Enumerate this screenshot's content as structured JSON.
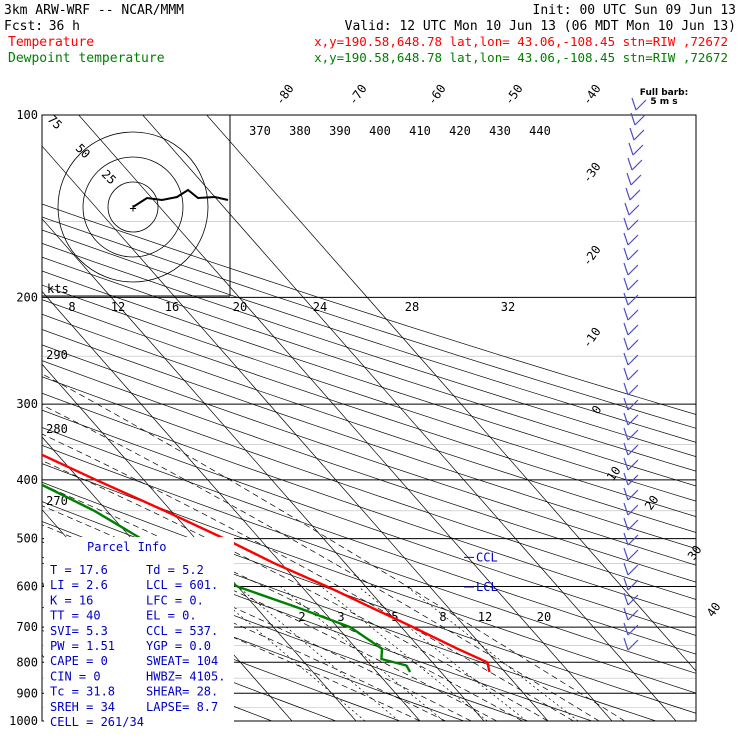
{
  "header": {
    "model": "3km ARW-WRF -- NCAR/MMM",
    "init": "Init: 00 UTC Sun 09 Jun 13",
    "fcst_label": "Fcst:",
    "fcst_value": "36 h",
    "valid": "Valid: 12 UTC Mon 10 Jun 13 (06 MDT Mon 10 Jun 13)",
    "temp_label": "Temperature",
    "temp_loc": "x,y=190.58,648.78   lat,lon= 43.06,-108.45   stn=RIW ,72672",
    "dew_label": "Dewpoint temperature",
    "dew_loc": "x,y=190.58,648.78   lat,lon= 43.06,-108.45   stn=RIW ,72672",
    "temp_color": "#ff0000",
    "dew_color": "#008000"
  },
  "hodograph": {
    "ring_labels": [
      "75",
      "50",
      "25"
    ],
    "units": "kts"
  },
  "barb_legend": {
    "line1": "Full barb:",
    "line2": "5 m s"
  },
  "parcel_info": {
    "title": "Parcel Info",
    "rows": [
      {
        "left": "T  =   17.6",
        "right": "Td =   5.2"
      },
      {
        "left": "LI =    2.6",
        "right": "LCL =  601."
      },
      {
        "left": "K  =     16",
        "right": "LFC =    0."
      },
      {
        "left": "TT =     40",
        "right": "EL =     0."
      },
      {
        "left": "SVI=    5.3",
        "right": "CCL =  537."
      },
      {
        "left": "PW =   1.51",
        "right": "YGP =   0.0"
      },
      {
        "left": "CAPE =    0",
        "right": "SWEAT=  104"
      },
      {
        "left": "CIN =     0",
        "right": "HWBZ= 4105."
      },
      {
        "left": "Tc =   31.8",
        "right": "SHEAR=  28."
      },
      {
        "left": "SREH =   34",
        "right": "LAPSE=  8.7"
      },
      {
        "left": "CELL = 261/34",
        "right": ""
      }
    ]
  },
  "chart_data": {
    "type": "line",
    "title": "",
    "xlabel": "",
    "ylabel": "",
    "y_scale": "log-pressure",
    "ylim": [
      1000,
      100
    ],
    "pressure_ticks": [
      "100",
      "200",
      "300",
      "400",
      "500",
      "600",
      "700",
      "800",
      "900",
      "1000"
    ],
    "isotherm_labels": [
      "-80",
      "-70",
      "-60",
      "-50",
      "-40",
      "-30",
      "-20",
      "-10",
      "0",
      "10",
      "20",
      "30",
      "40"
    ],
    "theta_labels": [
      "370",
      "380",
      "390",
      "400",
      "410",
      "420",
      "430",
      "440"
    ],
    "theta_low_labels": [
      "290",
      "280",
      "270"
    ],
    "mixing_ratio_labels": [
      "2",
      "3",
      "5",
      "8",
      "12",
      "20"
    ],
    "hodo_speed_labels": [
      "8",
      "12",
      "16",
      "20",
      "24",
      "28",
      "32"
    ],
    "markers": [
      {
        "label": "CCL",
        "pressure": 537
      },
      {
        "label": "LCL",
        "pressure": 601
      }
    ],
    "series": [
      {
        "name": "Temperature",
        "color": "#ff0000",
        "pressure": [
          830,
          800,
          760,
          700,
          650,
          600,
          550,
          500,
          450,
          400,
          350,
          300,
          260,
          230,
          200,
          175,
          160,
          150,
          140,
          130,
          120,
          110,
          100
        ],
        "temp": [
          17.6,
          18.6,
          15.8,
          11.8,
          8,
          4,
          -1,
          -5.5,
          -11,
          -17.5,
          -24.5,
          -32.5,
          -40,
          -45.5,
          -52.5,
          -56,
          -58,
          -59,
          -59,
          -60.5,
          -60,
          -55,
          -50
        ]
      },
      {
        "name": "Dewpoint temperature",
        "color": "#008000",
        "pressure": [
          830,
          810,
          790,
          760,
          700,
          650,
          600,
          550,
          500,
          450,
          400,
          360,
          330,
          300,
          260,
          230,
          200,
          180,
          160,
          150,
          140,
          130,
          120,
          110,
          100
        ],
        "temp": [
          5.2,
          5.5,
          2.5,
          4,
          2,
          -3.5,
          -10,
          -14,
          -18.5,
          -22,
          -27.5,
          -33.5,
          -40,
          -44,
          -49,
          -56,
          -63,
          -69,
          -74,
          -78,
          -79,
          -76,
          -76,
          -77,
          -78
        ]
      }
    ]
  }
}
